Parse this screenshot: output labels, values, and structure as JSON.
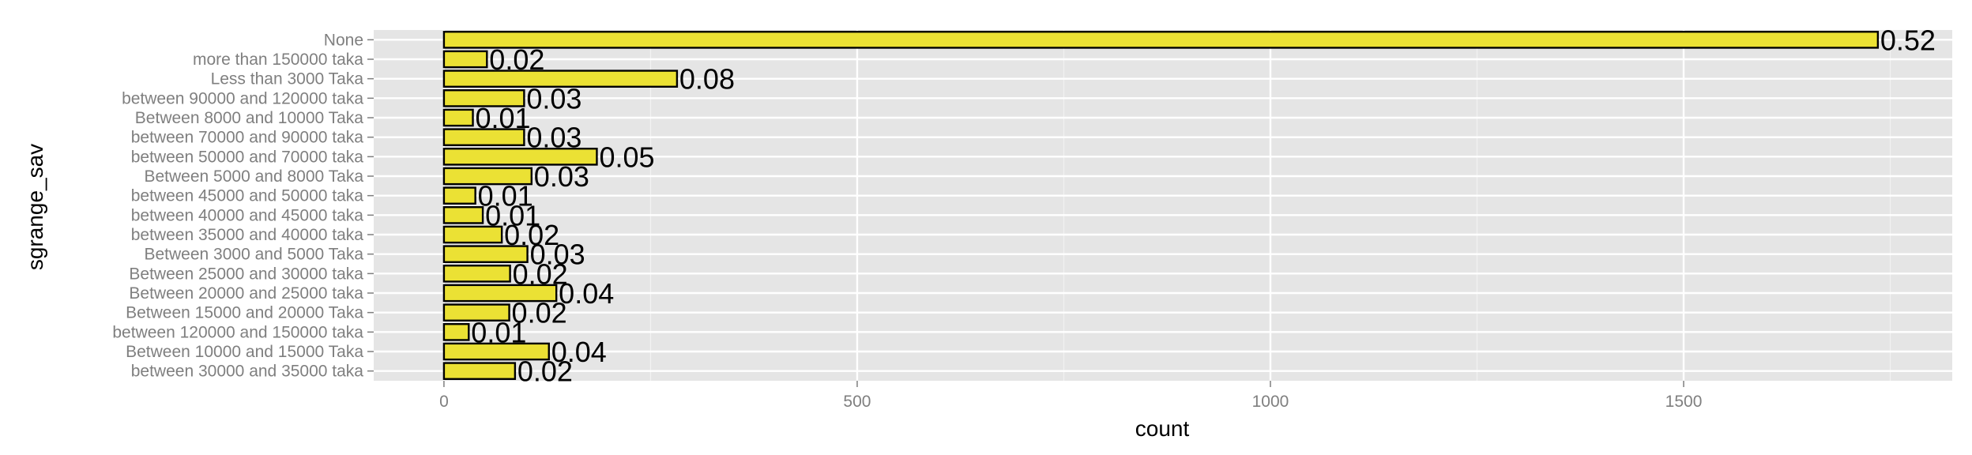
{
  "chart_data": {
    "type": "bar",
    "orientation": "horizontal",
    "categories": [
      "None",
      "more than 150000 taka",
      "Less than 3000 Taka",
      "between 90000 and 120000 taka",
      "Between 8000  and 10000 Taka",
      "between 70000 and 90000 taka",
      "between 50000 and 70000 taka",
      "Between 5000  and 8000 Taka",
      "between 45000 and 50000 taka",
      "between 40000 and 45000 taka",
      "between 35000 and 40000 taka",
      "Between 3000 and 5000 Taka",
      "Between 25000  and 30000 taka",
      "Between 20000  and 25000 taka",
      "Between 15000 and 20000 Taka",
      "between 120000 and 150000 taka",
      "Between 10000 and 15000 Taka",
      "between 30000 and 35000 taka"
    ],
    "values": [
      1735,
      52,
      282,
      97,
      35,
      97,
      185,
      106,
      38,
      47,
      70,
      101,
      80,
      136,
      79,
      30,
      127,
      86
    ],
    "data_labels": [
      "0.52",
      "0.02",
      "0.08",
      "0.03",
      "0.01",
      "0.03",
      "0.05",
      "0.03",
      "0.01",
      "0.01",
      "0.02",
      "0.03",
      "0.02",
      "0.04",
      "0.02",
      "0.01",
      "0.04",
      "0.02"
    ],
    "xlabel": "count",
    "ylabel": "sgrange_sav",
    "xlim": [
      -85,
      1825
    ],
    "xticks": [
      0,
      500,
      1000,
      1500
    ],
    "xtick_labels": [
      "0",
      "500",
      "1000",
      "1500"
    ],
    "grid": true,
    "colors": {
      "panel": "#e5e5e5",
      "gridline": "#ffffff",
      "bar_fill": "#ebe134",
      "bar_border": "#000000",
      "tick_text": "#7f7f7f"
    }
  }
}
